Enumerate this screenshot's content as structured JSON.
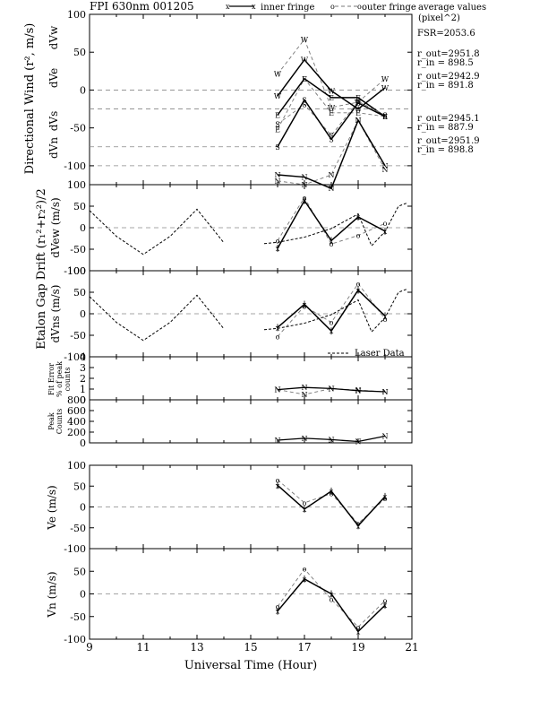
{
  "header": {
    "title": "FPI 630nm 001205",
    "legend_inner": "inner fringe",
    "legend_outer": "outer fringe",
    "legend_avg_line1": "average values",
    "legend_avg_line2": "(pixel^2)"
  },
  "side_annotations": {
    "fsr": "FSR=2053.6",
    "w": {
      "r_out": "r_out=2951.8",
      "r_in": "r_in = 898.5"
    },
    "e": {
      "r_out": "r_out=2942.9",
      "r_in": "r_in = 891.8"
    },
    "s": {
      "r_out": "r_out=2945.1",
      "r_in": "r_in = 887.9"
    },
    "n": {
      "r_out": "r_out=2951.9",
      "r_in": "r_in = 898.8"
    }
  },
  "ylabels": {
    "directional_main": "Directional Wind (r², m/s)",
    "dvw": "dVw",
    "dve": "dVe",
    "dvs": "dVs",
    "dvn": "dVn",
    "etalon_main": "Etalon Gap Drift (r₁²+r₂²)/2",
    "dvew": "dVew (m/s)",
    "dvns": "dVns (m/s)",
    "fit_line1": "Fit Error",
    "fit_line2": "% of peak",
    "fit_line3": "counts",
    "peak_line1": "Peak",
    "peak_line2": "Counts",
    "ve": "Ve (m/s)",
    "vn": "Vn (m/s)"
  },
  "laser_legend": "Laser Data",
  "xlabel": "Universal Time (Hour)",
  "chart_data": [
    {
      "id": "directional",
      "type": "line",
      "x_range": [
        9,
        21
      ],
      "ytick_labels": [
        "100",
        "50",
        "0",
        "-50",
        "-100"
      ],
      "ytick_values": [
        100,
        50,
        0,
        -50,
        -100
      ],
      "y_range": [
        -125,
        100
      ],
      "baselines": [
        0,
        -25,
        -75,
        -100
      ],
      "x": [
        16,
        17,
        18,
        19,
        20
      ],
      "series": [
        {
          "marker": "W",
          "offset": 0,
          "inner": [
            -8,
            40,
            -1,
            -25,
            3
          ],
          "outer": [
            21,
            67,
            -23,
            -16,
            15
          ]
        },
        {
          "marker": "E",
          "offset": -25,
          "inner": [
            -8,
            40,
            15,
            15,
            -10
          ],
          "outer": [
            -27,
            40,
            -5,
            -5,
            -10
          ]
        },
        {
          "marker": "S",
          "offset": -75,
          "inner": [
            0,
            62,
            10,
            58,
            40
          ],
          "outer": [
            30,
            56,
            15,
            60,
            42
          ]
        },
        {
          "marker": "N",
          "offset": -100,
          "inner": [
            -12,
            -15,
            -30,
            60,
            0
          ],
          "outer": [
            -20,
            -25,
            -12,
            60,
            -5
          ]
        }
      ]
    },
    {
      "id": "dvew",
      "type": "line",
      "x_range": [
        9,
        21
      ],
      "ytick_labels": [
        "100",
        "50",
        "0",
        "-50",
        "-100"
      ],
      "ytick_values": [
        100,
        50,
        0,
        -50,
        -100
      ],
      "y_range": [
        -100,
        100
      ],
      "baselines": [
        0
      ],
      "x": [
        16,
        17,
        18,
        19,
        20
      ],
      "inner": [
        -48,
        63,
        -30,
        25,
        -8
      ],
      "outer": [
        -30,
        70,
        -38,
        -18,
        10
      ],
      "laser_a": {
        "x": [
          9,
          10,
          11,
          12,
          13,
          14
        ],
        "y": [
          40,
          -20,
          -62,
          -20,
          43,
          -35
        ]
      },
      "laser_b": {
        "x": [
          15.5,
          16,
          17,
          18,
          19,
          19.5,
          20,
          20.5,
          20.8
        ],
        "y": [
          -37,
          -34,
          -22,
          -2,
          32,
          -42,
          -9,
          50,
          57
        ]
      }
    },
    {
      "id": "dvns",
      "type": "line",
      "x_range": [
        9,
        21
      ],
      "ytick_labels": [
        "100",
        "50",
        "0",
        "-50",
        "-100"
      ],
      "ytick_values": [
        100,
        50,
        0,
        -50,
        -100
      ],
      "y_range": [
        -100,
        100
      ],
      "baselines": [
        0
      ],
      "x": [
        16,
        17,
        18,
        19,
        20
      ],
      "inner": [
        -32,
        22,
        -40,
        55,
        -5
      ],
      "outer": [
        -53,
        18,
        -20,
        70,
        -12
      ],
      "laser_a": {
        "x": [
          9,
          10,
          11,
          12,
          13,
          14
        ],
        "y": [
          40,
          -20,
          -62,
          -20,
          43,
          -35
        ]
      },
      "laser_b": {
        "x": [
          15.5,
          16,
          17,
          18,
          19,
          19.5,
          20,
          20.5,
          20.8
        ],
        "y": [
          -37,
          -34,
          -22,
          -2,
          32,
          -42,
          -9,
          50,
          57
        ]
      }
    },
    {
      "id": "fit_error",
      "type": "line",
      "x_range": [
        9,
        21
      ],
      "ytick_labels": [
        "4",
        "3",
        "2",
        "1",
        "0"
      ],
      "ytick_values": [
        4,
        3,
        2,
        1,
        0
      ],
      "y_range": [
        0,
        4
      ],
      "x": [
        16,
        17,
        18,
        19,
        20
      ],
      "values": [
        0.95,
        1.15,
        1.05,
        0.85,
        0.75
      ],
      "values2": [
        0.95,
        0.5,
        1.05,
        0.9,
        0.75
      ]
    },
    {
      "id": "peak_counts",
      "type": "line",
      "x_range": [
        9,
        21
      ],
      "ytick_labels": [
        "800",
        "600",
        "400",
        "200",
        "0"
      ],
      "ytick_values": [
        800,
        600,
        400,
        200,
        0
      ],
      "y_range": [
        0,
        800
      ],
      "x": [
        16,
        17,
        18,
        19,
        20
      ],
      "values": [
        50,
        85,
        60,
        25,
        125
      ]
    },
    {
      "id": "ve",
      "type": "line",
      "x_range": [
        9,
        21
      ],
      "ytick_labels": [
        "100",
        "50",
        "0",
        "-50",
        "-100"
      ],
      "ytick_values": [
        100,
        50,
        0,
        -50,
        -100
      ],
      "y_range": [
        -100,
        100
      ],
      "baselines": [
        0
      ],
      "x": [
        16,
        17,
        18,
        19,
        20
      ],
      "inner": [
        52,
        -5,
        38,
        -45,
        25
      ],
      "outer": [
        65,
        10,
        32,
        -40,
        20
      ]
    },
    {
      "id": "vn",
      "type": "line",
      "x_range": [
        9,
        21
      ],
      "ytick_labels": [
        "50",
        "0",
        "-50",
        "-100"
      ],
      "ytick_values": [
        50,
        0,
        -50,
        -100
      ],
      "y_range": [
        -100,
        100
      ],
      "baselines": [
        0
      ],
      "x": [
        16,
        17,
        18,
        19,
        20
      ],
      "xtick_labels": [
        "9",
        "11",
        "13",
        "15",
        "17",
        "19",
        "21"
      ],
      "xtick_values": [
        9,
        11,
        13,
        15,
        17,
        19,
        21
      ],
      "inner": [
        -38,
        33,
        0,
        -83,
        -25
      ],
      "outer": [
        -28,
        55,
        -12,
        -73,
        -15
      ]
    }
  ]
}
